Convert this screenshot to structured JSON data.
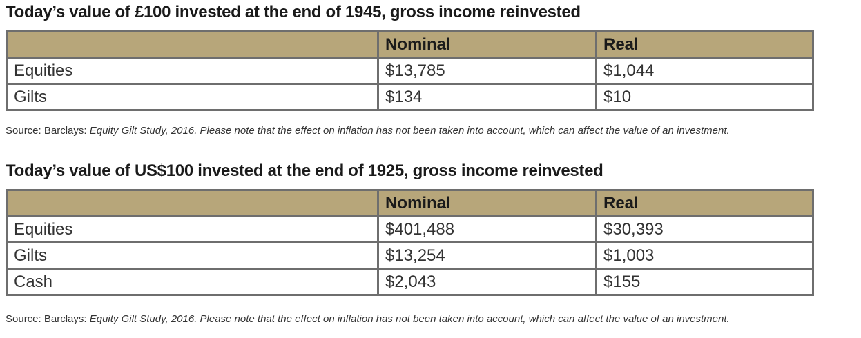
{
  "tables": [
    {
      "title": "Today’s value of £100 invested at the end of 1945, gross income reinvested",
      "header": [
        "",
        "Nominal",
        "Real"
      ],
      "rows": [
        [
          "Equities",
          "$13,785",
          "$1,044"
        ],
        [
          "Gilts",
          "$134",
          "$10"
        ]
      ],
      "source": {
        "prefix": "Source: Barclays: ",
        "note": "Equity Gilt Study, 2016. Please note that the effect on inflation has not been taken into account, which can affect the value of an investment."
      }
    },
    {
      "title": "Today’s value of US$100 invested at the end of 1925, gross income reinvested",
      "header": [
        "",
        "Nominal",
        "Real"
      ],
      "rows": [
        [
          "Equities",
          "$401,488",
          "$30,393"
        ],
        [
          "Gilts",
          "$13,254",
          "$1,003"
        ],
        [
          "Cash",
          "$2,043",
          "$155"
        ]
      ],
      "source": {
        "prefix": "Source: Barclays: ",
        "note": "Equity Gilt Study, 2016. Please note that the effect on inflation has not been taken into account, which can affect the value of an investment."
      }
    }
  ],
  "colors": {
    "header_fill": "#b7a67a",
    "border": "#6e6e6e"
  }
}
